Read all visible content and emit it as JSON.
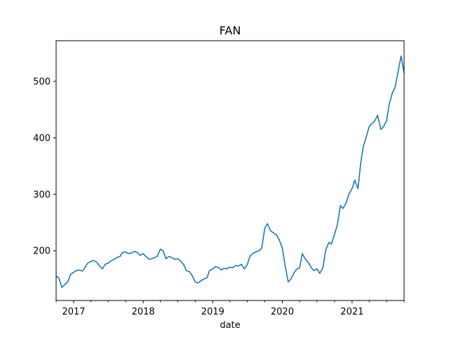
{
  "chart_data": {
    "type": "line",
    "title": "FAN",
    "xlabel": "date",
    "ylabel": "",
    "x_ticks": [
      "2017",
      "2018",
      "2019",
      "2020",
      "2021"
    ],
    "y_ticks": [
      200,
      300,
      400,
      500
    ],
    "xlim": [
      "2016-10-01",
      "2021-10-01"
    ],
    "ylim": [
      112,
      572
    ],
    "grid": false,
    "series": [
      {
        "color": "#1f77b4",
        "x": [
          "2016-10-01",
          "2016-10-15",
          "2016-11-01",
          "2016-11-15",
          "2016-12-01",
          "2016-12-15",
          "2017-01-01",
          "2017-01-15",
          "2017-02-01",
          "2017-02-15",
          "2017-03-01",
          "2017-03-15",
          "2017-04-01",
          "2017-04-15",
          "2017-05-01",
          "2017-05-15",
          "2017-06-01",
          "2017-06-15",
          "2017-07-01",
          "2017-07-15",
          "2017-08-01",
          "2017-08-15",
          "2017-09-01",
          "2017-09-15",
          "2017-10-01",
          "2017-10-15",
          "2017-11-01",
          "2017-11-15",
          "2017-12-01",
          "2017-12-15",
          "2018-01-01",
          "2018-01-15",
          "2018-02-01",
          "2018-02-15",
          "2018-03-01",
          "2018-03-15",
          "2018-04-01",
          "2018-04-15",
          "2018-05-01",
          "2018-05-15",
          "2018-06-01",
          "2018-06-15",
          "2018-07-01",
          "2018-07-15",
          "2018-08-01",
          "2018-08-15",
          "2018-09-01",
          "2018-09-15",
          "2018-10-01",
          "2018-10-15",
          "2018-11-01",
          "2018-11-15",
          "2018-12-01",
          "2018-12-15",
          "2019-01-01",
          "2019-01-15",
          "2019-02-01",
          "2019-02-15",
          "2019-03-01",
          "2019-03-15",
          "2019-04-01",
          "2019-04-15",
          "2019-05-01",
          "2019-05-15",
          "2019-06-01",
          "2019-06-15",
          "2019-07-01",
          "2019-07-15",
          "2019-08-01",
          "2019-08-15",
          "2019-09-01",
          "2019-09-15",
          "2019-10-01",
          "2019-10-15",
          "2019-11-01",
          "2019-11-15",
          "2019-12-01",
          "2019-12-15",
          "2020-01-01",
          "2020-01-15",
          "2020-02-01",
          "2020-02-15",
          "2020-03-01",
          "2020-03-10",
          "2020-03-20",
          "2020-04-01",
          "2020-04-15",
          "2020-05-01",
          "2020-05-15",
          "2020-06-01",
          "2020-06-15",
          "2020-07-01",
          "2020-07-15",
          "2020-08-01",
          "2020-08-15",
          "2020-09-01",
          "2020-09-15",
          "2020-10-01",
          "2020-10-15",
          "2020-11-01",
          "2020-11-15",
          "2020-12-01",
          "2020-12-15",
          "2021-01-01",
          "2021-01-15",
          "2021-02-01",
          "2021-02-15",
          "2021-03-01",
          "2021-03-15",
          "2021-04-01",
          "2021-04-15",
          "2021-05-01",
          "2021-05-15",
          "2021-06-01",
          "2021-06-15",
          "2021-07-01",
          "2021-07-15",
          "2021-08-01",
          "2021-08-15",
          "2021-09-01",
          "2021-09-15",
          "2021-10-01"
        ],
        "values": [
          155,
          152,
          135,
          140,
          145,
          158,
          162,
          165,
          166,
          164,
          170,
          178,
          181,
          183,
          180,
          174,
          168,
          176,
          178,
          182,
          185,
          188,
          190,
          197,
          198,
          195,
          196,
          199,
          197,
          192,
          195,
          190,
          185,
          186,
          188,
          190,
          203,
          200,
          186,
          190,
          188,
          185,
          186,
          182,
          176,
          165,
          163,
          156,
          145,
          143,
          147,
          150,
          152,
          165,
          168,
          172,
          170,
          166,
          169,
          168,
          171,
          170,
          174,
          173,
          176,
          168,
          175,
          190,
          196,
          198,
          200,
          205,
          240,
          248,
          235,
          232,
          228,
          220,
          205,
          175,
          145,
          150,
          160,
          165,
          168,
          170,
          195,
          185,
          180,
          170,
          165,
          168,
          160,
          170,
          200,
          215,
          212,
          230,
          245,
          280,
          275,
          285,
          300,
          310,
          325,
          310,
          355,
          385,
          400,
          420,
          425,
          430,
          440,
          415,
          420,
          430,
          460,
          480,
          490,
          520,
          545,
          515
        ]
      }
    ]
  }
}
